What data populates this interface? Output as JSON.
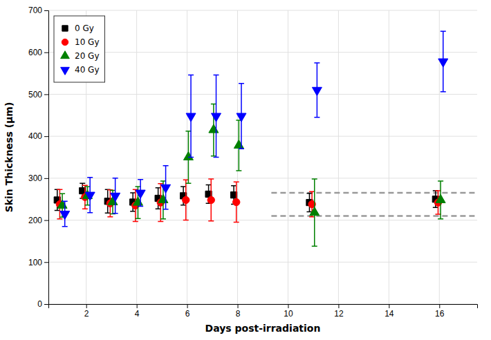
{
  "chart_data": {
    "type": "scatter",
    "xlabel": "Days post-irradiation",
    "ylabel": "Skin Thickness (μm)",
    "xlim": [
      0.5,
      17.5
    ],
    "ylim": [
      0,
      700
    ],
    "xticks": [
      2,
      4,
      6,
      8,
      10,
      12,
      14,
      16
    ],
    "yticks": [
      0,
      100,
      200,
      300,
      400,
      500,
      600,
      700
    ],
    "grid": true,
    "legend": "upper left",
    "hlines": [
      {
        "value": 265,
        "color": "#999999",
        "line_style": "dashed"
      },
      {
        "value": 210,
        "color": "#999999",
        "line_style": "dashed"
      }
    ],
    "series": [
      {
        "name": "0 Gy",
        "color": "#000000",
        "marker": "square",
        "x": [
          1,
          2,
          3,
          4,
          5,
          6,
          7,
          8,
          11,
          16
        ],
        "values": [
          248,
          270,
          245,
          243,
          252,
          258,
          262,
          260,
          242,
          250
        ],
        "errors": [
          25,
          18,
          28,
          22,
          25,
          22,
          22,
          22,
          22,
          20
        ]
      },
      {
        "name": "10 Gy",
        "color": "#ff0000",
        "marker": "circle",
        "x": [
          1,
          2,
          3,
          4,
          5,
          6,
          7,
          8,
          11,
          16
        ],
        "values": [
          238,
          255,
          240,
          235,
          242,
          248,
          248,
          243,
          238,
          242
        ],
        "errors": [
          35,
          28,
          32,
          38,
          45,
          48,
          50,
          48,
          30,
          28
        ]
      },
      {
        "name": "20 Gy",
        "color": "#008000",
        "marker": "triangle-up",
        "x": [
          1,
          2,
          3,
          4,
          5,
          6,
          7,
          8,
          11,
          16
        ],
        "values": [
          235,
          258,
          243,
          242,
          248,
          350,
          415,
          378,
          218,
          248
        ],
        "errors": [
          28,
          22,
          28,
          38,
          45,
          62,
          62,
          60,
          80,
          45
        ]
      },
      {
        "name": "40 Gy",
        "color": "#0000ff",
        "marker": "triangle-down",
        "x": [
          1,
          2,
          3,
          4,
          5,
          6,
          7,
          8,
          11,
          16
        ],
        "values": [
          215,
          260,
          258,
          265,
          278,
          448,
          448,
          448,
          510,
          578
        ],
        "errors": [
          30,
          42,
          42,
          32,
          52,
          98,
          98,
          78,
          65,
          72
        ]
      }
    ]
  }
}
